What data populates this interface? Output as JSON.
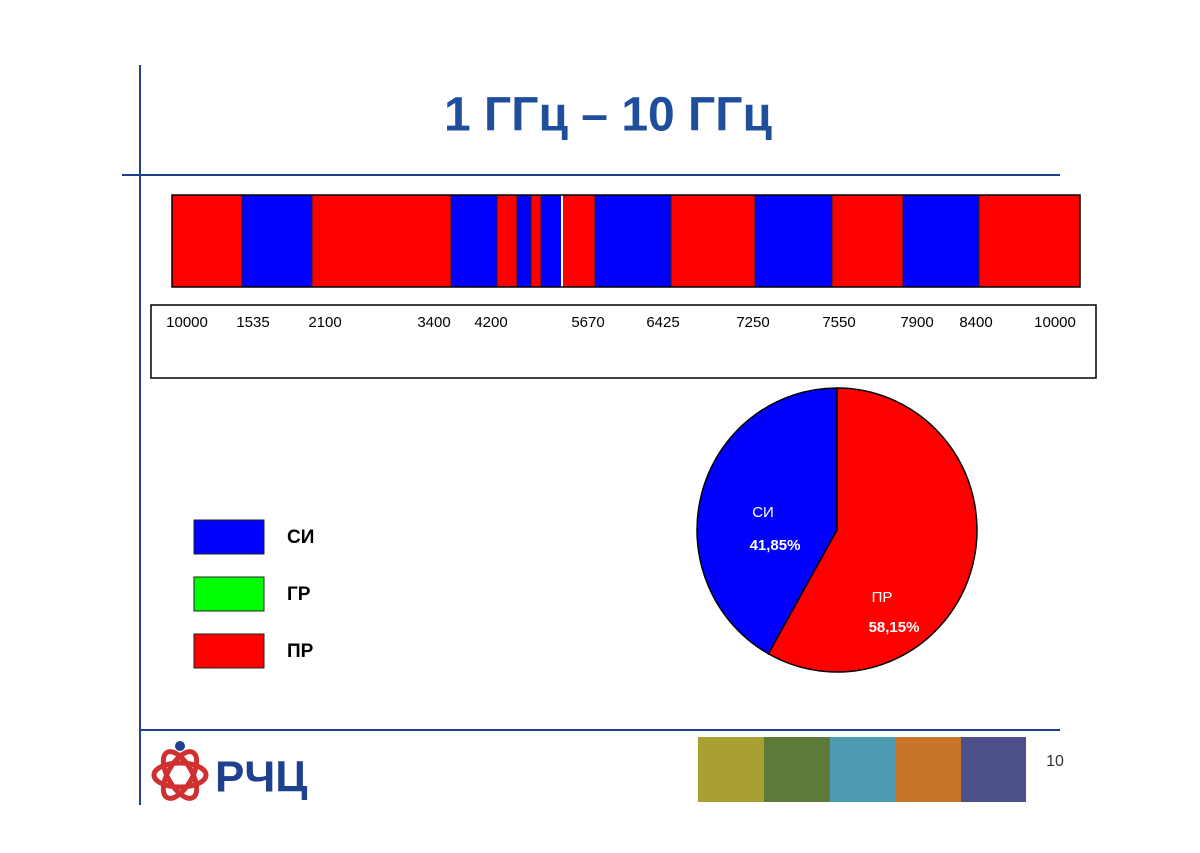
{
  "title": "1 ГГц – 10 ГГц",
  "band_labels": [
    "10000",
    "1535",
    "2100",
    "3400",
    "4200",
    "5670",
    "6425",
    "7250",
    "7550",
    "7900",
    "8400",
    "10000"
  ],
  "legend": [
    {
      "name": "СИ",
      "color": "#0000ff"
    },
    {
      "name": "ГР",
      "color": "#00ff00"
    },
    {
      "name": "ПР",
      "color": "#ff0000"
    }
  ],
  "chart_data": {
    "type": "pie",
    "categories": [
      "СИ",
      "ПР"
    ],
    "values": [
      41.85,
      58.15
    ],
    "value_labels": [
      "41,85%",
      "58,15%"
    ],
    "colors": [
      "#0000ff",
      "#ff0000"
    ]
  },
  "logo": "РЧЦ",
  "page_number": "10"
}
